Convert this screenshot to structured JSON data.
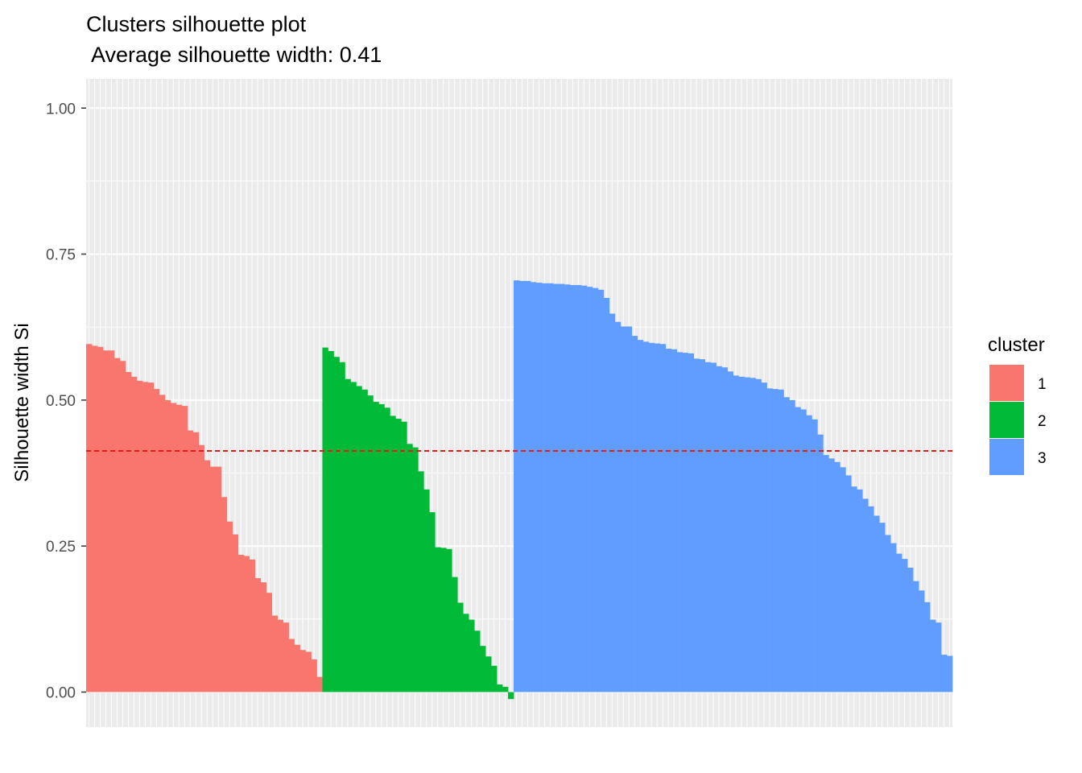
{
  "chart_data": {
    "type": "bar",
    "title": "Clusters silhouette plot",
    "subtitle": " Average silhouette width: 0.41",
    "xlabel": "",
    "ylabel": "Silhouette width Si",
    "ylim": [
      -0.06,
      1.05
    ],
    "yticks": [
      0,
      0.25,
      0.5,
      0.75,
      1
    ],
    "ytick_labels": [
      "0.00",
      "0.25",
      "0.50",
      "0.75",
      "1.00"
    ],
    "reference_line": {
      "value": 0.413,
      "style": "dashed",
      "color": "#E41A1C"
    },
    "grid": true,
    "legend": {
      "title": "cluster",
      "position": "right"
    },
    "series": [
      {
        "name": "1",
        "color": "#F8766D",
        "values": [
          0.596,
          0.593,
          0.591,
          0.585,
          0.585,
          0.572,
          0.567,
          0.548,
          0.54,
          0.533,
          0.531,
          0.53,
          0.519,
          0.509,
          0.5,
          0.495,
          0.492,
          0.49,
          0.448,
          0.445,
          0.423,
          0.397,
          0.386,
          0.386,
          0.334,
          0.292,
          0.27,
          0.235,
          0.233,
          0.227,
          0.195,
          0.188,
          0.17,
          0.131,
          0.124,
          0.119,
          0.091,
          0.081,
          0.072,
          0.069,
          0.056,
          0.026
        ]
      },
      {
        "name": "2",
        "color": "#00BA38",
        "values": [
          0.59,
          0.584,
          0.574,
          0.565,
          0.536,
          0.531,
          0.524,
          0.518,
          0.508,
          0.497,
          0.493,
          0.487,
          0.473,
          0.468,
          0.463,
          0.425,
          0.419,
          0.378,
          0.347,
          0.308,
          0.248,
          0.247,
          0.245,
          0.197,
          0.153,
          0.134,
          0.124,
          0.105,
          0.079,
          0.061,
          0.045,
          0.013,
          0.009,
          -0.012
        ]
      },
      {
        "name": "3",
        "color": "#619CFF",
        "values": [
          0.705,
          0.704,
          0.704,
          0.702,
          0.701,
          0.7,
          0.7,
          0.699,
          0.699,
          0.698,
          0.697,
          0.697,
          0.696,
          0.694,
          0.692,
          0.689,
          0.675,
          0.648,
          0.634,
          0.626,
          0.626,
          0.61,
          0.603,
          0.6,
          0.598,
          0.597,
          0.596,
          0.588,
          0.587,
          0.582,
          0.581,
          0.58,
          0.571,
          0.57,
          0.565,
          0.564,
          0.558,
          0.556,
          0.549,
          0.542,
          0.54,
          0.539,
          0.538,
          0.536,
          0.53,
          0.52,
          0.519,
          0.518,
          0.505,
          0.5,
          0.488,
          0.484,
          0.474,
          0.467,
          0.441,
          0.406,
          0.4,
          0.394,
          0.385,
          0.371,
          0.352,
          0.347,
          0.331,
          0.318,
          0.302,
          0.29,
          0.269,
          0.255,
          0.237,
          0.228,
          0.213,
          0.19,
          0.174,
          0.154,
          0.124,
          0.119,
          0.064,
          0.062
        ]
      }
    ]
  }
}
